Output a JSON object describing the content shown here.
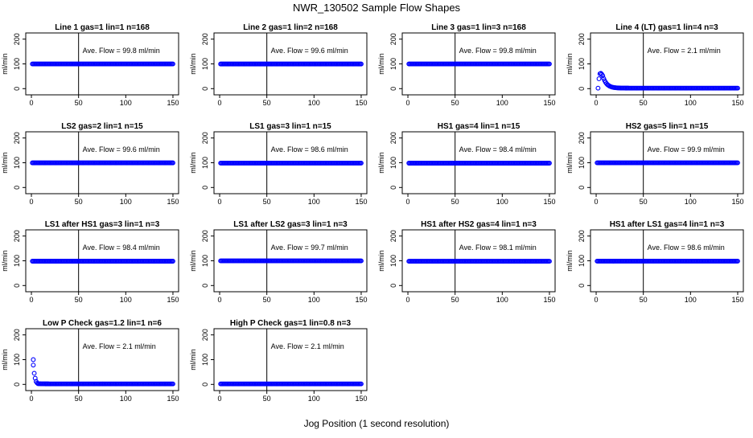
{
  "title": "NWR_130502  Sample Flow Shapes",
  "xlabel": "Jog Position (1 second resolution)",
  "colors": {
    "points": "#0000ff",
    "axes": "#000000"
  },
  "chart_data": [
    {
      "type": "scatter",
      "title": "Line 1 gas=1 lin=1 n=168",
      "ylabel": "ml/min",
      "annotation": "Ave. Flow = 99.8  ml/min",
      "x_ticks": [
        "0",
        "50",
        "100",
        "150"
      ],
      "y_ticks": [
        "0",
        "100",
        "200"
      ],
      "xlim": [
        0,
        150
      ],
      "ylim": [
        -25,
        225
      ],
      "vline_x": 50,
      "shape": "flat",
      "level": 99.8
    },
    {
      "type": "scatter",
      "title": "Line 2 gas=1 lin=2 n=168",
      "ylabel": "ml/min",
      "annotation": "Ave. Flow = 99.6  ml/min",
      "x_ticks": [
        "0",
        "50",
        "100",
        "150"
      ],
      "y_ticks": [
        "0",
        "100",
        "200"
      ],
      "xlim": [
        0,
        150
      ],
      "ylim": [
        -25,
        225
      ],
      "vline_x": 50,
      "shape": "flat",
      "level": 99.6
    },
    {
      "type": "scatter",
      "title": "Line 3 gas=1 lin=3 n=168",
      "ylabel": "ml/min",
      "annotation": "Ave. Flow = 99.8  ml/min",
      "x_ticks": [
        "0",
        "50",
        "100",
        "150"
      ],
      "y_ticks": [
        "0",
        "100",
        "200"
      ],
      "xlim": [
        0,
        150
      ],
      "ylim": [
        -25,
        225
      ],
      "vline_x": 50,
      "shape": "flat",
      "level": 99.8
    },
    {
      "type": "scatter",
      "title": "Line 4 (LT) gas=1 lin=4 n=3",
      "ylabel": "ml/min",
      "annotation": "Ave. Flow = 2.1  ml/min",
      "x_ticks": [
        "0",
        "50",
        "100",
        "150"
      ],
      "y_ticks": [
        "0",
        "100",
        "200"
      ],
      "xlim": [
        0,
        150
      ],
      "ylim": [
        -25,
        225
      ],
      "vline_x": 50,
      "shape": "decay",
      "start_points": [
        [
          2,
          2
        ],
        [
          3,
          40
        ],
        [
          4,
          60
        ],
        [
          5,
          62
        ],
        [
          6,
          58
        ],
        [
          7,
          52
        ]
      ],
      "level": 2.1
    },
    {
      "type": "scatter",
      "title": "LS2 gas=2 lin=1 n=15",
      "ylabel": "ml/min",
      "annotation": "Ave. Flow = 99.6  ml/min",
      "x_ticks": [
        "0",
        "50",
        "100",
        "150"
      ],
      "y_ticks": [
        "0",
        "100",
        "200"
      ],
      "xlim": [
        0,
        150
      ],
      "ylim": [
        -25,
        225
      ],
      "vline_x": 50,
      "shape": "flat",
      "level": 99.6
    },
    {
      "type": "scatter",
      "title": "LS1 gas=3 lin=1 n=15",
      "ylabel": "ml/min",
      "annotation": "Ave. Flow = 98.6  ml/min",
      "x_ticks": [
        "0",
        "50",
        "100",
        "150"
      ],
      "y_ticks": [
        "0",
        "100",
        "200"
      ],
      "xlim": [
        0,
        150
      ],
      "ylim": [
        -25,
        225
      ],
      "vline_x": 50,
      "shape": "flat",
      "level": 98.6
    },
    {
      "type": "scatter",
      "title": "HS1 gas=4 lin=1 n=15",
      "ylabel": "ml/min",
      "annotation": "Ave. Flow = 98.4  ml/min",
      "x_ticks": [
        "0",
        "50",
        "100",
        "150"
      ],
      "y_ticks": [
        "0",
        "100",
        "200"
      ],
      "xlim": [
        0,
        150
      ],
      "ylim": [
        -25,
        225
      ],
      "vline_x": 50,
      "shape": "flat",
      "level": 98.4
    },
    {
      "type": "scatter",
      "title": "HS2 gas=5 lin=1 n=15",
      "ylabel": "ml/min",
      "annotation": "Ave. Flow = 99.9  ml/min",
      "x_ticks": [
        "0",
        "50",
        "100",
        "150"
      ],
      "y_ticks": [
        "0",
        "100",
        "200"
      ],
      "xlim": [
        0,
        150
      ],
      "ylim": [
        -25,
        225
      ],
      "vline_x": 50,
      "shape": "flat",
      "level": 99.9
    },
    {
      "type": "scatter",
      "title": "LS1 after HS1 gas=3 lin=1 n=3",
      "ylabel": "ml/min",
      "annotation": "Ave. Flow = 98.4  ml/min",
      "x_ticks": [
        "0",
        "50",
        "100",
        "150"
      ],
      "y_ticks": [
        "0",
        "100",
        "200"
      ],
      "xlim": [
        0,
        150
      ],
      "ylim": [
        -25,
        225
      ],
      "vline_x": 50,
      "shape": "flat",
      "level": 98.4
    },
    {
      "type": "scatter",
      "title": "LS1 after LS2 gas=3 lin=1 n=3",
      "ylabel": "ml/min",
      "annotation": "Ave. Flow = 99.7  ml/min",
      "x_ticks": [
        "0",
        "50",
        "100",
        "150"
      ],
      "y_ticks": [
        "0",
        "100",
        "200"
      ],
      "xlim": [
        0,
        150
      ],
      "ylim": [
        -25,
        225
      ],
      "vline_x": 50,
      "shape": "flat",
      "level": 99.7
    },
    {
      "type": "scatter",
      "title": "HS1 after HS2 gas=4 lin=1 n=3",
      "ylabel": "ml/min",
      "annotation": "Ave. Flow = 98.1  ml/min",
      "x_ticks": [
        "0",
        "50",
        "100",
        "150"
      ],
      "y_ticks": [
        "0",
        "100",
        "200"
      ],
      "xlim": [
        0,
        150
      ],
      "ylim": [
        -25,
        225
      ],
      "vline_x": 50,
      "shape": "flat",
      "level": 98.1
    },
    {
      "type": "scatter",
      "title": "HS1 after LS1 gas=4 lin=1 n=3",
      "ylabel": "ml/min",
      "annotation": "Ave. Flow = 98.6  ml/min",
      "x_ticks": [
        "0",
        "50",
        "100",
        "150"
      ],
      "y_ticks": [
        "0",
        "100",
        "200"
      ],
      "xlim": [
        0,
        150
      ],
      "ylim": [
        -25,
        225
      ],
      "vline_x": 50,
      "shape": "flat",
      "level": 98.6
    },
    {
      "type": "scatter",
      "title": "Low P Check gas=1.2 lin=1 n=6",
      "ylabel": "ml/min",
      "annotation": "Ave. Flow = 2.1  ml/min",
      "x_ticks": [
        "0",
        "50",
        "100",
        "150"
      ],
      "y_ticks": [
        "0",
        "100",
        "200"
      ],
      "xlim": [
        0,
        150
      ],
      "ylim": [
        -25,
        225
      ],
      "vline_x": 50,
      "shape": "decay",
      "start_points": [
        [
          2,
          100
        ],
        [
          2,
          78
        ],
        [
          3,
          45
        ],
        [
          4,
          25
        ],
        [
          5,
          12
        ],
        [
          6,
          6
        ],
        [
          7,
          3
        ]
      ],
      "level": 2.1
    },
    {
      "type": "scatter",
      "title": "High P Check gas=1 lin=0.8 n=3",
      "ylabel": "ml/min",
      "annotation": "Ave. Flow = 2.1  ml/min",
      "x_ticks": [
        "0",
        "50",
        "100",
        "150"
      ],
      "y_ticks": [
        "0",
        "100",
        "200"
      ],
      "xlim": [
        0,
        150
      ],
      "ylim": [
        -25,
        225
      ],
      "vline_x": 50,
      "shape": "flat",
      "level": 2.1
    }
  ]
}
